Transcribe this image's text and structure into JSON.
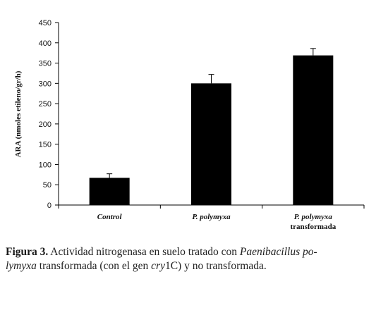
{
  "chart_data": {
    "type": "bar",
    "categories": [
      {
        "line1": "Control",
        "line2": ""
      },
      {
        "line1": "P. polymyxa",
        "line2": ""
      },
      {
        "line1": "P. polymyxa",
        "line2": "transformada"
      }
    ],
    "values": [
      67,
      300,
      369
    ],
    "errors": [
      10,
      22,
      17
    ],
    "ylabel": "ARA (nmoles etileno/gr/h)",
    "ylim": [
      0,
      450
    ],
    "yticks": [
      0,
      50,
      100,
      150,
      200,
      250,
      300,
      350,
      400,
      450
    ],
    "grid": false,
    "bar_color": "#000000"
  },
  "caption": {
    "label": "Figura 3.",
    "part1": " Actividad nitrogenasa en suelo tratado con ",
    "species_a": "Paenibacillus po-",
    "species_b": "lymyxa",
    "part2": " transformada (con el gen ",
    "gene_italic": "cry",
    "gene_rest": "1C",
    "part3": ") y no transformada."
  }
}
